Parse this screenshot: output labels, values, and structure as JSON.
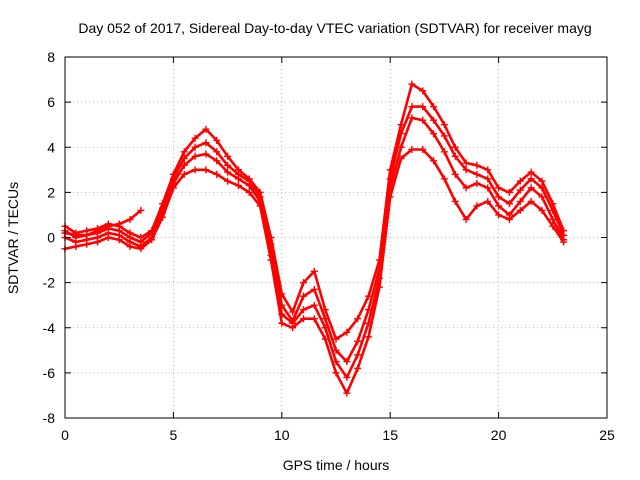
{
  "chart_data": {
    "type": "scatter",
    "marker": "plus",
    "title": "Day 052 of 2017, Sidereal Day-to-day VTEC variation (SDTVAR) for receiver mayg",
    "xlabel": "GPS time / hours",
    "ylabel": "SDTVAR / TECUs",
    "xlim": [
      0,
      25
    ],
    "ylim": [
      -8,
      8
    ],
    "xticks": [
      0,
      5,
      10,
      15,
      20,
      25
    ],
    "xtick_labels": [
      "0",
      "5",
      "10",
      "15",
      "20",
      "25"
    ],
    "yticks": [
      -8,
      -6,
      -4,
      -2,
      0,
      2,
      4,
      6,
      8
    ],
    "ytick_labels": [
      "-8",
      "-6",
      "-4",
      "-2",
      "0",
      "2",
      "4",
      "6",
      "8"
    ],
    "grid": true,
    "color": "#ff0000",
    "series": [
      {
        "name": "track-1",
        "x": [
          0.0,
          0.5,
          1.0,
          1.5,
          2.0,
          2.5,
          3.0,
          3.5,
          4.0,
          4.5,
          5.0,
          5.5,
          6.0,
          6.5,
          7.0,
          7.5,
          8.0,
          8.5,
          9.0,
          9.5,
          10.0,
          10.5,
          11.0,
          11.5,
          12.0,
          12.5,
          13.0,
          13.5,
          14.0,
          14.5,
          15.0,
          15.5,
          16.0,
          16.5,
          17.0,
          17.5,
          18.0,
          18.5,
          19.0,
          19.5,
          20.0,
          20.5,
          21.0,
          21.5,
          22.0,
          22.5,
          23.0
        ],
        "y": [
          0.5,
          0.2,
          0.3,
          0.4,
          0.6,
          0.5,
          0.2,
          0.0,
          0.3,
          1.5,
          2.8,
          3.8,
          4.4,
          4.8,
          4.3,
          3.6,
          3.0,
          2.6,
          2.0,
          0.0,
          -2.5,
          -3.3,
          -2.0,
          -1.5,
          -3.2,
          -4.5,
          -4.2,
          -3.6,
          -2.6,
          -1.0,
          3.0,
          5.0,
          6.8,
          6.5,
          5.8,
          5.0,
          4.0,
          3.3,
          3.2,
          3.0,
          2.2,
          2.0,
          2.5,
          2.9,
          2.5,
          1.5,
          0.3
        ]
      },
      {
        "name": "track-2",
        "x": [
          0.0,
          0.5,
          1.0,
          1.5,
          2.0,
          2.5,
          3.0,
          3.5,
          4.0,
          4.5,
          5.0,
          5.5,
          6.0,
          6.5,
          7.0,
          7.5,
          8.0,
          8.5,
          9.0,
          9.5,
          10.0,
          10.5,
          11.0,
          11.5,
          12.0,
          12.5,
          13.0,
          13.5,
          14.0,
          14.5,
          15.0,
          15.5,
          16.0,
          16.5,
          17.0,
          17.5,
          18.0,
          18.5,
          19.0,
          19.5,
          20.0,
          20.5,
          21.0,
          21.5,
          22.0,
          22.5,
          23.0
        ],
        "y": [
          0.3,
          0.0,
          0.1,
          0.2,
          0.4,
          0.3,
          0.0,
          -0.2,
          0.2,
          1.3,
          2.6,
          3.5,
          4.0,
          4.2,
          3.8,
          3.2,
          2.8,
          2.5,
          1.8,
          -0.3,
          -3.0,
          -3.7,
          -2.6,
          -2.3,
          -3.6,
          -5.0,
          -5.5,
          -4.6,
          -3.2,
          -1.4,
          2.6,
          4.6,
          5.8,
          5.8,
          5.2,
          4.5,
          3.6,
          3.0,
          2.8,
          2.6,
          1.8,
          1.5,
          2.1,
          2.6,
          2.2,
          1.2,
          0.1
        ]
      },
      {
        "name": "track-3",
        "x": [
          0.0,
          0.5,
          1.0,
          1.5,
          2.0,
          2.5,
          3.0,
          3.5,
          4.0,
          4.5,
          5.0,
          5.5,
          6.0,
          6.5,
          7.0,
          7.5,
          8.0,
          8.5,
          9.0,
          9.5,
          10.0,
          10.5,
          11.0,
          11.5,
          12.0,
          12.5,
          13.0,
          13.5,
          14.0,
          14.5,
          15.0,
          15.5,
          16.0,
          16.5,
          17.0,
          17.5,
          18.0,
          18.5,
          19.0,
          19.5,
          20.0,
          20.5,
          21.0,
          21.5,
          22.0,
          22.5,
          23.0
        ],
        "y": [
          0.0,
          -0.2,
          -0.1,
          0.0,
          0.2,
          0.1,
          -0.2,
          -0.4,
          0.0,
          1.1,
          2.4,
          3.2,
          3.6,
          3.7,
          3.4,
          2.9,
          2.6,
          2.3,
          1.6,
          -0.8,
          -3.4,
          -3.8,
          -3.2,
          -3.0,
          -4.0,
          -5.5,
          -6.2,
          -5.2,
          -3.8,
          -1.8,
          2.2,
          4.0,
          5.3,
          5.2,
          4.6,
          3.8,
          2.8,
          2.2,
          2.4,
          2.2,
          1.4,
          1.0,
          1.6,
          2.2,
          1.8,
          0.8,
          -0.1
        ]
      },
      {
        "name": "track-4",
        "x": [
          0.0,
          0.5,
          1.0,
          1.5,
          2.0,
          2.5,
          3.0,
          3.5,
          4.0,
          4.5,
          5.0,
          5.5,
          6.0,
          6.5,
          7.0,
          7.5,
          8.0,
          8.5,
          9.0,
          9.5,
          10.0,
          10.5,
          11.0,
          11.5,
          12.0,
          12.5,
          13.0,
          13.5,
          14.0,
          14.5,
          15.0,
          15.5,
          16.0,
          16.5,
          17.0,
          17.5,
          18.0,
          18.5,
          19.0,
          19.5,
          20.0,
          20.5,
          21.0,
          21.5,
          22.0,
          22.5,
          23.0
        ],
        "y": [
          -0.5,
          -0.4,
          -0.3,
          -0.2,
          0.0,
          -0.1,
          -0.4,
          -0.5,
          -0.1,
          0.9,
          2.2,
          2.8,
          3.0,
          3.0,
          2.8,
          2.5,
          2.3,
          2.0,
          1.4,
          -1.0,
          -3.8,
          -4.0,
          -3.6,
          -3.6,
          -4.5,
          -6.0,
          -6.9,
          -5.8,
          -4.4,
          -2.2,
          1.8,
          3.5,
          3.9,
          3.9,
          3.4,
          2.6,
          1.6,
          0.8,
          1.4,
          1.6,
          1.0,
          0.8,
          1.2,
          1.6,
          1.2,
          0.5,
          -0.2
        ]
      },
      {
        "name": "track-5",
        "x": [
          0.0,
          0.5,
          1.0,
          1.5,
          2.0,
          2.5,
          3.0,
          3.5
        ],
        "y": [
          0.2,
          0.1,
          0.1,
          0.3,
          0.5,
          0.6,
          0.8,
          1.2
        ]
      }
    ]
  }
}
